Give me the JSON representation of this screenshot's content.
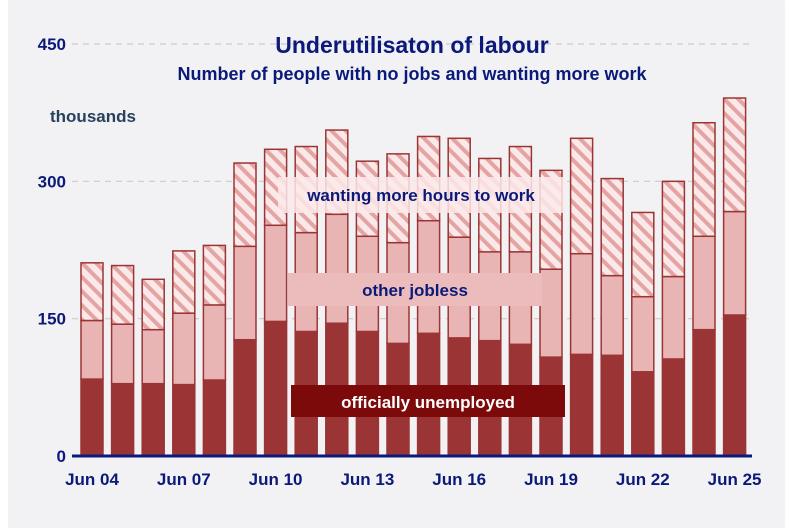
{
  "chart_data": {
    "type": "bar",
    "stacked": true,
    "title": "Underutilisaton of labour",
    "subtitle": "Number of people with no jobs and wanting more work",
    "ylabel": "thousands",
    "xlabel": "",
    "ylim": [
      0,
      450
    ],
    "yticks": [
      0,
      150,
      300,
      450
    ],
    "xtick_labels": [
      "Jun 04",
      "Jun 07",
      "Jun 10",
      "Jun 13",
      "Jun 16",
      "Jun 19",
      "Jun 22",
      "Jun 25"
    ],
    "xtick_indices": [
      0,
      3,
      6,
      9,
      12,
      15,
      18,
      21
    ],
    "categories": [
      "Jun 04",
      "Jun 05",
      "Jun 06",
      "Jun 07",
      "Jun 08",
      "Jun 09",
      "Jun 10",
      "Jun 11",
      "Jun 12",
      "Jun 13",
      "Jun 14",
      "Jun 15",
      "Jun 16",
      "Jun 17",
      "Jun 18",
      "Jun 19",
      "Jun 20",
      "Jun 21",
      "Jun 22",
      "Jun 23",
      "Jun 24",
      "Jun 25"
    ],
    "series": [
      {
        "name": "officially unemployed",
        "color": "#9b3535",
        "values": [
          84,
          79,
          79,
          78,
          83,
          127,
          147,
          136,
          145,
          136,
          123,
          134,
          129,
          126,
          122,
          108,
          111,
          110,
          92,
          106,
          138,
          154
        ]
      },
      {
        "name": "other jobless",
        "color": "#e8b5b4",
        "values": [
          64,
          65,
          59,
          78,
          82,
          102,
          105,
          108,
          119,
          104,
          110,
          123,
          110,
          97,
          101,
          96,
          110,
          87,
          82,
          90,
          102,
          113
        ]
      },
      {
        "name": "wanting more hours to work",
        "color": "#f6dada",
        "pattern": "hatched",
        "values": [
          63,
          64,
          55,
          68,
          65,
          91,
          83,
          94,
          92,
          82,
          97,
          92,
          108,
          102,
          115,
          108,
          126,
          106,
          92,
          104,
          124,
          124
        ]
      }
    ],
    "annotations": [
      "wanting more hours to work",
      "other jobless",
      "officially unemployed"
    ],
    "grid": true
  },
  "colors": {
    "axis": "#0b1a7a",
    "grid": "#cccccc",
    "unemployed": "#9b3535",
    "other": "#e8b5b4",
    "hours_fill": "#fbe9e9",
    "hours_stripe": "#e4a4a3",
    "border": "#9b3535",
    "label_dark_bg": "#7d0a0a"
  }
}
